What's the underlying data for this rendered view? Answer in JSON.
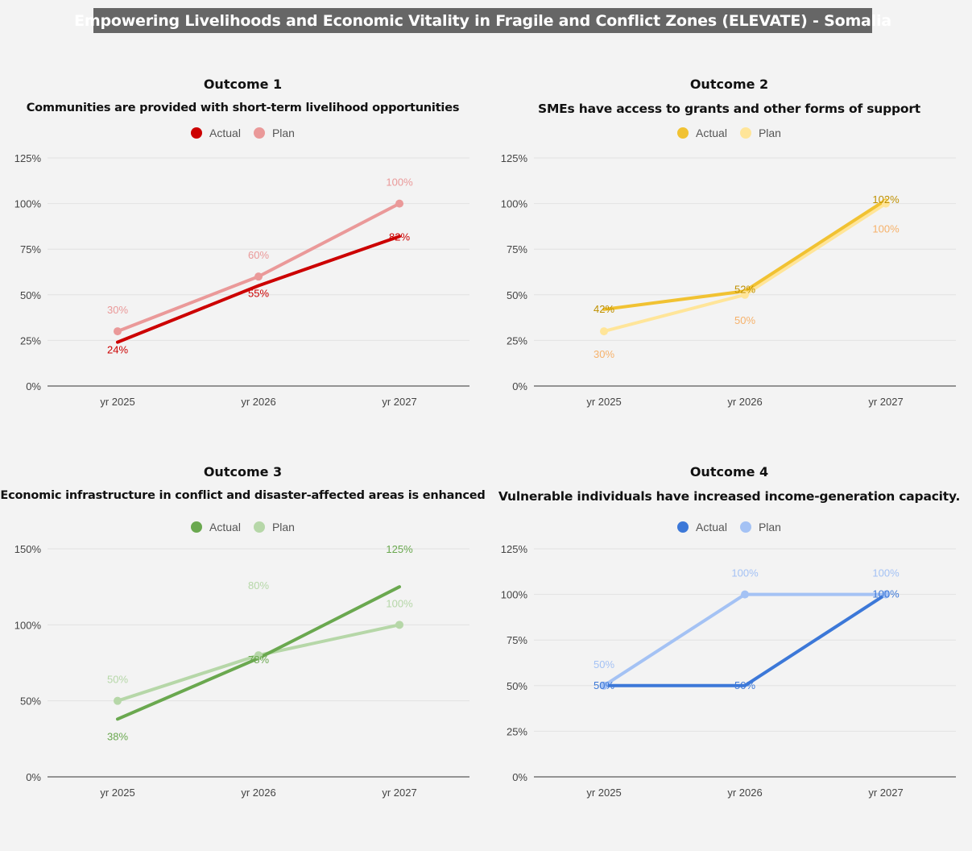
{
  "header": {
    "title": "Empowering Livelihoods and Economic Vitality in Fragile and Conflict Zones (ELEVATE) - Somalia"
  },
  "chart_data": [
    {
      "type": "line",
      "outcome": "Outcome 1",
      "title": "Communities are provided with short-term livelihood opportunities",
      "categories": [
        "yr 2025",
        "yr 2026",
        "yr 2027"
      ],
      "ylim": [
        0,
        125
      ],
      "yticks": [
        "0%",
        "25%",
        "50%",
        "75%",
        "100%",
        "125%"
      ],
      "series": [
        {
          "name": "Actual",
          "values": [
            24,
            55,
            82
          ],
          "labels": [
            "24%",
            "55%",
            "82%"
          ],
          "color": "#cc0000",
          "label_color": "#cc0000"
        },
        {
          "name": "Plan",
          "values": [
            30,
            60,
            100
          ],
          "labels": [
            "30%",
            "60%",
            "100%"
          ],
          "color": "#ea9999",
          "label_color": "#ea9999"
        }
      ],
      "legend": "top",
      "grid": true
    },
    {
      "type": "line",
      "outcome": "Outcome 2",
      "title": "SMEs have access to grants and other forms of support",
      "categories": [
        "yr 2025",
        "yr 2026",
        "yr 2027"
      ],
      "ylim": [
        0,
        125
      ],
      "yticks": [
        "0%",
        "25%",
        "50%",
        "75%",
        "100%",
        "125%"
      ],
      "series": [
        {
          "name": "Actual",
          "values": [
            42,
            52,
            102
          ],
          "labels": [
            "42%",
            "52%",
            "102%"
          ],
          "color": "#f1c232",
          "label_color": "#bf9000"
        },
        {
          "name": "Plan",
          "values": [
            30,
            50,
            100
          ],
          "labels": [
            "30%",
            "50%",
            "100%"
          ],
          "color": "#ffe599",
          "label_color": "#f6b26b"
        }
      ],
      "legend": "top",
      "grid": true
    },
    {
      "type": "line",
      "outcome": "Outcome 3",
      "title": "Economic infrastructure in conflict and disaster-affected areas is enhanced",
      "categories": [
        "yr 2025",
        "yr 2026",
        "yr 2027"
      ],
      "ylim": [
        0,
        150
      ],
      "yticks": [
        "0%",
        "50%",
        "100%",
        "150%"
      ],
      "series": [
        {
          "name": "Actual",
          "values": [
            38,
            78,
            125
          ],
          "labels": [
            "38%",
            "78%",
            "125%"
          ],
          "color": "#6aa84f",
          "label_color": "#6aa84f"
        },
        {
          "name": "Plan",
          "values": [
            50,
            80,
            100
          ],
          "labels": [
            "50%",
            "80%",
            "100%"
          ],
          "color": "#b6d7a8",
          "label_color": "#b6d7a8"
        }
      ],
      "legend": "top",
      "grid": true
    },
    {
      "type": "line",
      "outcome": "Outcome 4",
      "title": "Vulnerable individuals have increased income-generation capacity.",
      "categories": [
        "yr 2025",
        "yr 2026",
        "yr 2027"
      ],
      "ylim": [
        0,
        125
      ],
      "yticks": [
        "0%",
        "25%",
        "50%",
        "75%",
        "100%",
        "125%"
      ],
      "series": [
        {
          "name": "Actual",
          "values": [
            50,
            50,
            100
          ],
          "labels": [
            "50%",
            "50%",
            "100%"
          ],
          "color": "#3c78d8",
          "label_color": "#3c78d8"
        },
        {
          "name": "Plan",
          "values": [
            50,
            100,
            100
          ],
          "labels": [
            "50%",
            "100%",
            "100%"
          ],
          "color": "#a4c2f4",
          "label_color": "#a4c2f4"
        }
      ],
      "legend": "top",
      "grid": true
    }
  ]
}
